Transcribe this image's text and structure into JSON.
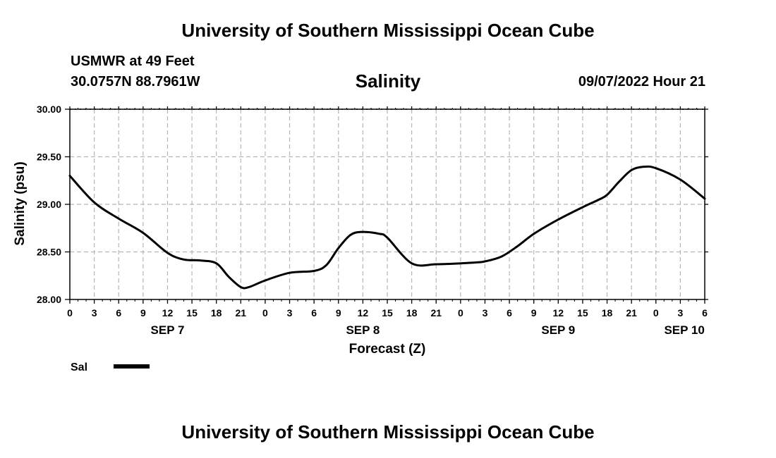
{
  "header": {
    "title": "University of Southern Mississippi Ocean Cube",
    "station": "USMWR at 49 Feet",
    "coords": "30.0757N  88.7961W",
    "variable": "Salinity",
    "datetime": "09/07/2022 Hour 21"
  },
  "footer": {
    "title": "University of Southern Mississippi Ocean Cube"
  },
  "chart_data": {
    "type": "line",
    "title": "Salinity",
    "xlabel": "Forecast (Z)",
    "ylabel": "Salinity (psu)",
    "ylim": [
      28.0,
      30.0
    ],
    "xlim": [
      0,
      78
    ],
    "grid": true,
    "y_ticks": [
      {
        "value": 28.0,
        "label": "28.00"
      },
      {
        "value": 28.5,
        "label": "28.50"
      },
      {
        "value": 29.0,
        "label": "29.00"
      },
      {
        "value": 29.5,
        "label": "29.50"
      },
      {
        "value": 30.0,
        "label": "30.00"
      }
    ],
    "x_ticks": [
      {
        "value": 0,
        "label": "0"
      },
      {
        "value": 3,
        "label": "3"
      },
      {
        "value": 6,
        "label": "6"
      },
      {
        "value": 9,
        "label": "9"
      },
      {
        "value": 12,
        "label": "12"
      },
      {
        "value": 15,
        "label": "15"
      },
      {
        "value": 18,
        "label": "18"
      },
      {
        "value": 21,
        "label": "21"
      },
      {
        "value": 24,
        "label": "0"
      },
      {
        "value": 27,
        "label": "3"
      },
      {
        "value": 30,
        "label": "6"
      },
      {
        "value": 33,
        "label": "9"
      },
      {
        "value": 36,
        "label": "12"
      },
      {
        "value": 39,
        "label": "15"
      },
      {
        "value": 42,
        "label": "18"
      },
      {
        "value": 45,
        "label": "21"
      },
      {
        "value": 48,
        "label": "0"
      },
      {
        "value": 51,
        "label": "3"
      },
      {
        "value": 54,
        "label": "6"
      },
      {
        "value": 57,
        "label": "9"
      },
      {
        "value": 60,
        "label": "12"
      },
      {
        "value": 63,
        "label": "15"
      },
      {
        "value": 66,
        "label": "18"
      },
      {
        "value": 69,
        "label": "21"
      },
      {
        "value": 72,
        "label": "0"
      },
      {
        "value": 75,
        "label": "3"
      },
      {
        "value": 78,
        "label": "6"
      }
    ],
    "day_labels": [
      {
        "x": 12,
        "label": "SEP 7"
      },
      {
        "x": 36,
        "label": "SEP 8"
      },
      {
        "x": 60,
        "label": "SEP 9"
      },
      {
        "x": 75.5,
        "label": "SEP 10"
      }
    ],
    "legend": [
      {
        "name": "Sal",
        "color": "#000000"
      }
    ],
    "series": [
      {
        "name": "Sal",
        "color": "#000000",
        "x": [
          0,
          3,
          6,
          9,
          12,
          14,
          16,
          18,
          19.5,
          21,
          22,
          24,
          27,
          30,
          31.5,
          33,
          34.5,
          36,
          38,
          39,
          42,
          45,
          48,
          50,
          51,
          53,
          55,
          57,
          60,
          63,
          65,
          66,
          67.5,
          69,
          70.5,
          72,
          75,
          78
        ],
        "values": [
          29.3,
          29.02,
          28.85,
          28.7,
          28.49,
          28.42,
          28.41,
          28.38,
          28.24,
          28.13,
          28.13,
          28.2,
          28.28,
          28.3,
          28.36,
          28.54,
          28.68,
          28.71,
          28.69,
          28.65,
          28.38,
          28.37,
          28.38,
          28.39,
          28.4,
          28.45,
          28.56,
          28.69,
          28.84,
          28.97,
          29.05,
          29.1,
          29.24,
          29.36,
          29.395,
          29.38,
          29.26,
          29.06
        ]
      }
    ]
  }
}
